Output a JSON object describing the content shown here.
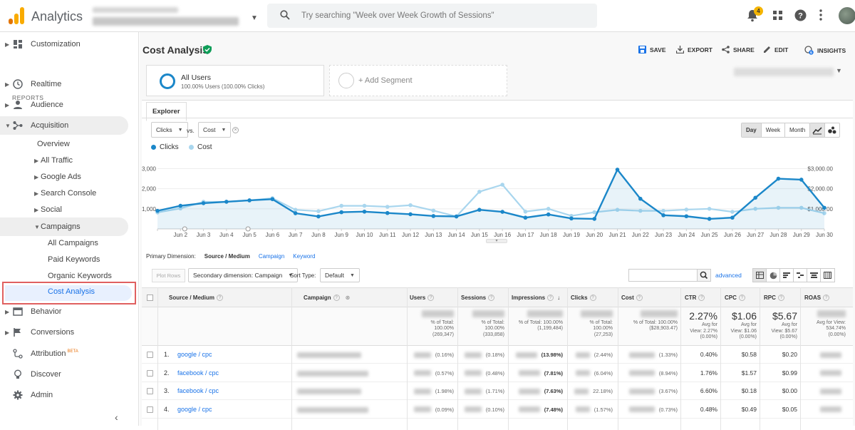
{
  "app": {
    "name": "Analytics"
  },
  "search": {
    "placeholder": "Try searching \"Week over Week Growth of Sessions\""
  },
  "notifications": {
    "count": "4"
  },
  "sidebar": {
    "customization": "Customization",
    "reports_header": "REPORTS",
    "realtime": "Realtime",
    "audience": "Audience",
    "acquisition": "Acquisition",
    "overview": "Overview",
    "all_traffic": "All Traffic",
    "google_ads": "Google Ads",
    "search_console": "Search Console",
    "social": "Social",
    "campaigns": "Campaigns",
    "all_campaigns": "All Campaigns",
    "paid_keywords": "Paid Keywords",
    "organic_keywords": "Organic Keywords",
    "cost_analysis": "Cost Analysis",
    "behavior": "Behavior",
    "conversions": "Conversions",
    "attribution": "Attribution",
    "attribution_badge": "BETA",
    "discover": "Discover",
    "admin": "Admin"
  },
  "page": {
    "title": "Cost Analysis",
    "actions": {
      "save": "SAVE",
      "export": "EXPORT",
      "share": "SHARE",
      "edit": "EDIT",
      "insights": "INSIGHTS"
    }
  },
  "segments": {
    "all_users": "All Users",
    "all_users_sub": "100.00% Users (100.00% Clicks)",
    "add_segment": "+ Add Segment"
  },
  "explorer": {
    "tab": "Explorer",
    "metric1": "Clicks",
    "vs": "vs.",
    "metric2": "Cost",
    "day": "Day",
    "week": "Week",
    "month": "Month"
  },
  "chart_data": {
    "type": "line",
    "x": [
      "",
      "Jun 2",
      "Jun 3",
      "Jun 4",
      "Jun 5",
      "Jun 6",
      "Jun 7",
      "Jun 8",
      "Jun 9",
      "Jun 10",
      "Jun 11",
      "Jun 12",
      "Jun 13",
      "Jun 14",
      "Jun 15",
      "Jun 16",
      "Jun 17",
      "Jun 18",
      "Jun 19",
      "Jun 20",
      "Jun 21",
      "Jun 22",
      "Jun 23",
      "Jun 24",
      "Jun 25",
      "Jun 26",
      "Jun 27",
      "Jun 28",
      "Jun 29",
      "Jun 30"
    ],
    "y_left_ticks": [
      "3,000",
      "2,000",
      "1,000"
    ],
    "y_right_ticks": [
      "$3,000.00",
      "$2,000.00",
      "$1,000.00"
    ],
    "ylim_left": [
      0,
      3300
    ],
    "ylim_right": [
      0,
      3300
    ],
    "series": [
      {
        "name": "Clicks",
        "color": "#1b87c9",
        "values": [
          900,
          1150,
          1280,
          1350,
          1420,
          1480,
          780,
          620,
          830,
          860,
          790,
          730,
          640,
          620,
          950,
          850,
          560,
          720,
          520,
          500,
          2950,
          1500,
          680,
          630,
          500,
          560,
          1550,
          2500,
          2450,
          1050
        ]
      },
      {
        "name": "Cost",
        "color": "#a9d6ee",
        "values": [
          820,
          1020,
          1350,
          1350,
          1420,
          1530,
          950,
          880,
          1150,
          1150,
          1100,
          1180,
          910,
          620,
          1850,
          2200,
          860,
          1000,
          650,
          830,
          950,
          900,
          900,
          960,
          1000,
          850,
          1000,
          1050,
          1050,
          780
        ]
      }
    ]
  },
  "table": {
    "primary_dim_label": "Primary Dimension:",
    "primary_dim_current": "Source / Medium",
    "primary_dim_links": [
      "Campaign",
      "Keyword"
    ],
    "plot_rows": "Plot Rows",
    "secondary_dim": "Secondary dimension: Campaign",
    "sort_type_label": "Sort Type:",
    "sort_type": "Default",
    "advanced": "advanced",
    "headers": [
      "Source / Medium",
      "Campaign",
      "Users",
      "Sessions",
      "Impressions",
      "Clicks",
      "Cost",
      "CTR",
      "CPC",
      "RPC",
      "ROAS"
    ],
    "totals": {
      "users": [
        "% of Total:",
        "100.00%",
        "(269,347)"
      ],
      "sessions": [
        "% of Total:",
        "100.00%",
        "(333,858)"
      ],
      "impressions": [
        "% of Total: 100.00%",
        "(1,199,484)"
      ],
      "clicks": [
        "% of Total:",
        "100.00%",
        "(27,253)"
      ],
      "cost": [
        "% of Total: 100.00%",
        "($28,903.47)"
      ],
      "ctr": [
        "2.27%",
        "Avg for",
        "View: 2.27%",
        "(0.00%)"
      ],
      "cpc": [
        "$1.06",
        "Avg for",
        "View: $1.06",
        "(0.00%)"
      ],
      "rpc": [
        "$5.67",
        "Avg for",
        "View: $5.67",
        "(0.00%)"
      ],
      "roas": [
        "Avg for View:",
        "534.74%",
        "(0.00%)"
      ]
    },
    "rows": [
      {
        "n": "1.",
        "source": "google / cpc",
        "users_pct": "(0.16%)",
        "sessions_pct": "(0.18%)",
        "impr_pct": "(13.98%)",
        "clicks_pct": "(2.44%)",
        "cost_pct": "(1.33%)",
        "ctr": "0.40%",
        "cpc": "$0.58",
        "rpc": "$0.20"
      },
      {
        "n": "2.",
        "source": "facebook / cpc",
        "users_pct": "(0.57%)",
        "sessions_pct": "(0.48%)",
        "impr_pct": "(7.81%)",
        "clicks_pct": "(6.04%)",
        "cost_pct": "(8.94%)",
        "ctr": "1.76%",
        "cpc": "$1.57",
        "rpc": "$0.99"
      },
      {
        "n": "3.",
        "source": "facebook / cpc",
        "users_pct": "(1.98%)",
        "sessions_pct": "(1.71%)",
        "impr_pct": "(7.63%)",
        "clicks_pct": "22.18%)",
        "cost_pct": "(3.67%)",
        "ctr": "6.60%",
        "cpc": "$0.18",
        "rpc": "$0.00"
      },
      {
        "n": "4.",
        "source": "google / cpc",
        "users_pct": "(0.09%)",
        "sessions_pct": "(0.10%)",
        "impr_pct": "(7.48%)",
        "clicks_pct": "(1.57%)",
        "cost_pct": "(0.73%)",
        "ctr": "0.48%",
        "cpc": "$0.49",
        "rpc": "$0.05"
      }
    ]
  }
}
